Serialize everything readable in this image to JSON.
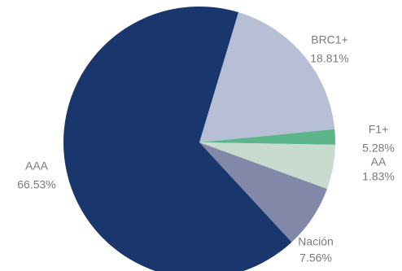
{
  "chart_data": {
    "type": "pie",
    "categories": [
      "BRC1+",
      "AA",
      "F1+",
      "Nación",
      "AAA"
    ],
    "values": [
      18.81,
      1.83,
      5.28,
      7.56,
      66.53
    ],
    "value_labels": [
      "18.81%",
      "1.83%",
      "5.28%",
      "7.56%",
      "66.53%"
    ],
    "colors": [
      "#b7bfd4",
      "#5db58c",
      "#c7dccf",
      "#8289a8",
      "#19376d"
    ]
  }
}
